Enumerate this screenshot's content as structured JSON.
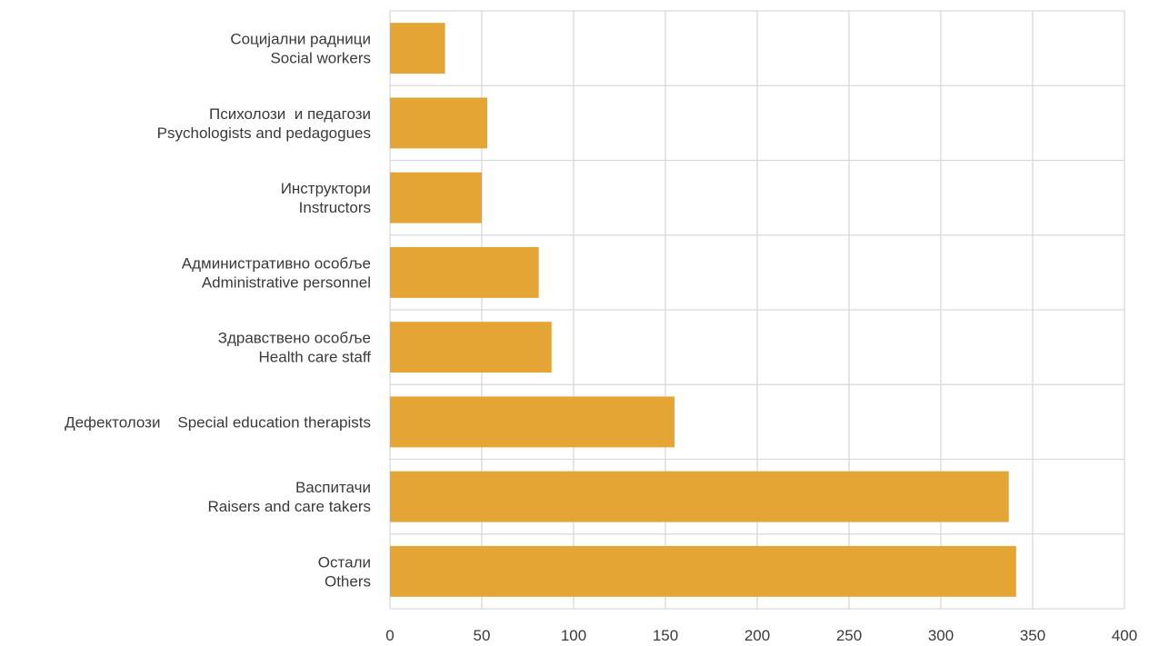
{
  "chart_data": {
    "type": "bar",
    "orientation": "horizontal",
    "categories": [
      "Социјални радници Social workers",
      "Психолози и педагози Psychologists and pedagogues",
      "Инструктори Instructors",
      "Административно особље Administrative personnel",
      "Здравствено особље Health care staff",
      "Дефектолози Special education therapists",
      "Васпитачи Raisers and care takers",
      "Остали Others"
    ],
    "category_labels": [
      [
        "Социјални радници",
        "Social workers"
      ],
      [
        "Психолози  и педагози",
        "Psychologists and pedagogues"
      ],
      [
        "Инструктори",
        "Instructors"
      ],
      [
        "Административно особље",
        "Administrative personnel"
      ],
      [
        "Здравствено особље",
        "Health care staff"
      ],
      [
        "Дефектолози    Special education therapists"
      ],
      [
        "Васпитачи",
        "Raisers and care takers"
      ],
      [
        "Остали",
        "Others"
      ]
    ],
    "values": [
      30,
      53,
      50,
      81,
      88,
      155,
      337,
      341
    ],
    "xlim": [
      0,
      400
    ],
    "xticks": [
      "0",
      "50",
      "100",
      "150",
      "200",
      "250",
      "300",
      "350",
      "400"
    ],
    "title": "",
    "xlabel": "",
    "ylabel": "",
    "grid": true,
    "legend": "none",
    "colors": {
      "bar": "#E5A535",
      "grid": "#D9D9D9",
      "text": "#3A3A3A"
    }
  }
}
